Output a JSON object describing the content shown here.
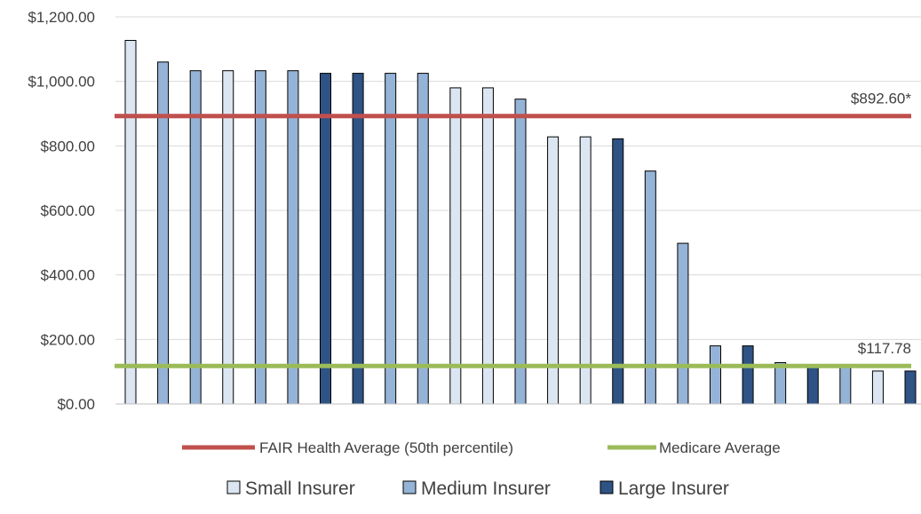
{
  "colors": {
    "small": "#dce6f2",
    "medium": "#95b3d7",
    "large": "#2e5384",
    "bar_stroke": "#000000",
    "fair_line": "#c0504d",
    "medicare_line": "#9bbb59",
    "grid": "#d9d9d9"
  },
  "chart_data": {
    "type": "bar",
    "title": "",
    "xlabel": "",
    "ylabel": "",
    "ylim": [
      0,
      1200
    ],
    "yticks": [
      0,
      200,
      400,
      600,
      800,
      1000,
      1200
    ],
    "ytick_labels": [
      "$0.00",
      "$200.00",
      "$400.00",
      "$600.00",
      "$800.00",
      "$1,000.00",
      "$1,200.00"
    ],
    "grid": true,
    "legend_position": "bottom",
    "bars": [
      {
        "value": 1127,
        "insurer": "small"
      },
      {
        "value": 1060,
        "insurer": "medium"
      },
      {
        "value": 1033,
        "insurer": "medium"
      },
      {
        "value": 1033,
        "insurer": "small"
      },
      {
        "value": 1033,
        "insurer": "medium"
      },
      {
        "value": 1033,
        "insurer": "medium"
      },
      {
        "value": 1025,
        "insurer": "large"
      },
      {
        "value": 1025,
        "insurer": "large"
      },
      {
        "value": 1025,
        "insurer": "medium"
      },
      {
        "value": 1025,
        "insurer": "medium"
      },
      {
        "value": 980,
        "insurer": "small"
      },
      {
        "value": 980,
        "insurer": "small"
      },
      {
        "value": 945,
        "insurer": "medium"
      },
      {
        "value": 828,
        "insurer": "small"
      },
      {
        "value": 828,
        "insurer": "small"
      },
      {
        "value": 822,
        "insurer": "large"
      },
      {
        "value": 722,
        "insurer": "medium"
      },
      {
        "value": 498,
        "insurer": "medium"
      },
      {
        "value": 180,
        "insurer": "medium"
      },
      {
        "value": 180,
        "insurer": "large"
      },
      {
        "value": 128,
        "insurer": "medium"
      },
      {
        "value": 120,
        "insurer": "large"
      },
      {
        "value": 118,
        "insurer": "medium"
      },
      {
        "value": 102,
        "insurer": "small"
      },
      {
        "value": 102,
        "insurer": "large"
      }
    ],
    "reference_lines": [
      {
        "name": "FAIR Health Average (50th percentile)",
        "value": 892.6,
        "label": "$892.60*",
        "color": "#c0504d"
      },
      {
        "name": "Medicare Average",
        "value": 117.78,
        "label": "$117.78",
        "color": "#9bbb59"
      }
    ],
    "line_legend": [
      "FAIR Health Average (50th percentile)",
      "Medicare Average"
    ],
    "bar_legend": [
      {
        "key": "small",
        "label": "Small Insurer"
      },
      {
        "key": "medium",
        "label": "Medium Insurer"
      },
      {
        "key": "large",
        "label": "Large Insurer"
      }
    ]
  }
}
